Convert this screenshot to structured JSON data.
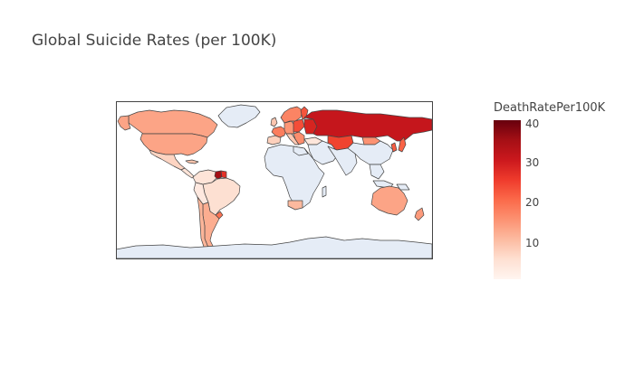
{
  "title": "Global Suicide Rates (per 100K)",
  "colorbar": {
    "title": "DeathRatePer100K",
    "ticks": [
      "40",
      "30",
      "20",
      "10"
    ],
    "range": [
      1,
      41
    ],
    "colorscale": [
      "#fff5f0",
      "#fcbba1",
      "#fc9272",
      "#fb6a4a",
      "#ef3b2c",
      "#cb181d",
      "#67000d"
    ]
  },
  "colors": {
    "no_data_land": "#e5ecf6",
    "border": "#444444",
    "background": "#ffffff"
  },
  "chart_data": {
    "type": "choropleth",
    "metric": "DeathRatePer100K",
    "regions": [
      {
        "name": "Russia",
        "value": 32
      },
      {
        "name": "Kazakhstan",
        "value": 28
      },
      {
        "name": "Ukraine",
        "value": 26
      },
      {
        "name": "Belarus",
        "value": 30
      },
      {
        "name": "Lithuania",
        "value": 35
      },
      {
        "name": "Finland",
        "value": 20
      },
      {
        "name": "Sweden",
        "value": 15
      },
      {
        "name": "Norway",
        "value": 13
      },
      {
        "name": "Poland",
        "value": 21
      },
      {
        "name": "France",
        "value": 18
      },
      {
        "name": "Spain",
        "value": 9
      },
      {
        "name": "Germany",
        "value": 15
      },
      {
        "name": "United States",
        "value": 15
      },
      {
        "name": "Canada",
        "value": 14
      },
      {
        "name": "Mexico",
        "value": 6
      },
      {
        "name": "Guyana",
        "value": 38
      },
      {
        "name": "Suriname",
        "value": 28
      },
      {
        "name": "Brazil",
        "value": 7
      },
      {
        "name": "Argentina",
        "value": 12
      },
      {
        "name": "Chile",
        "value": 13
      },
      {
        "name": "Uruguay",
        "value": 22
      },
      {
        "name": "Australia",
        "value": 15
      },
      {
        "name": "New Zealand",
        "value": 16
      },
      {
        "name": "South Africa",
        "value": 13
      },
      {
        "name": "Japan",
        "value": 24
      },
      {
        "name": "South Korea",
        "value": 30
      },
      {
        "name": "Mongolia",
        "value": 22
      },
      {
        "name": "Turkey",
        "value": 5
      }
    ]
  }
}
